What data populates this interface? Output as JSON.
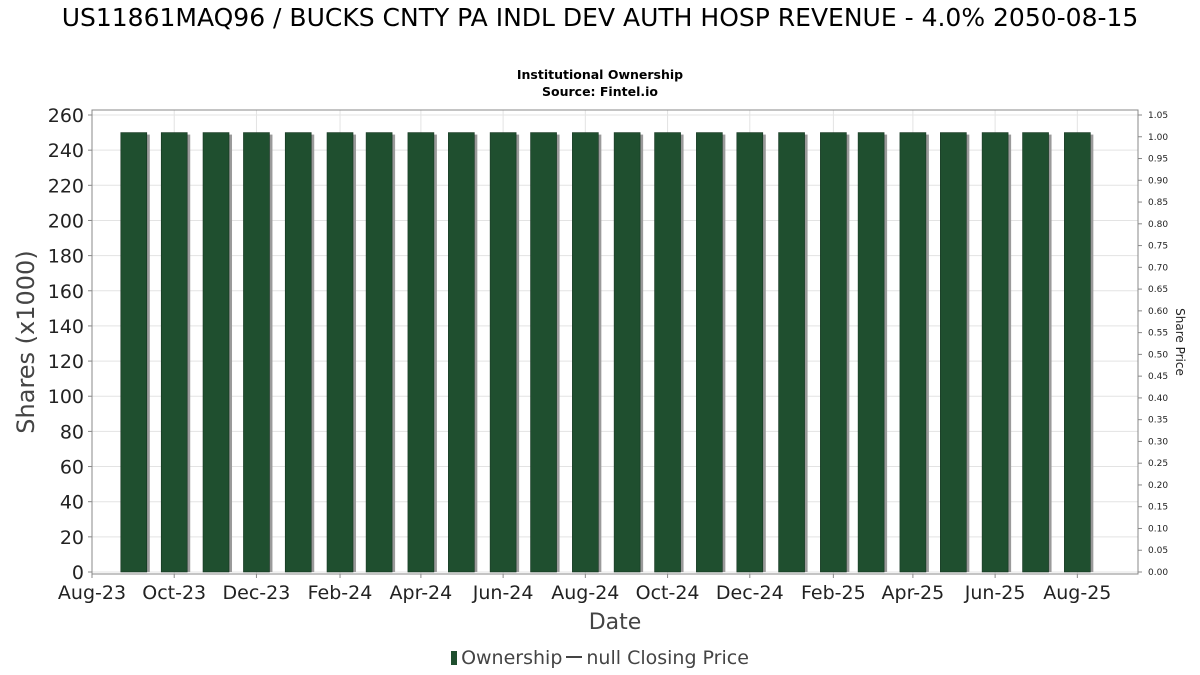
{
  "header": {
    "title": "US11861MAQ96 / BUCKS CNTY PA INDL DEV AUTH HOSP REVENUE - 4.0% 2050-08-15",
    "subtitle1": "Institutional Ownership",
    "subtitle2": "Source: Fintel.io"
  },
  "legend": {
    "ownership": "Ownership",
    "price": "null Closing Price"
  },
  "colors": {
    "bar": "#1f4f2f",
    "bar_shadow": "#9a9a9a",
    "grid": "#e3e3e3"
  },
  "chart_data": {
    "type": "bar",
    "xlabel": "Date",
    "ylabel": "Shares (x1000)",
    "y2label": "Share Price",
    "ylim": [
      0,
      260
    ],
    "yticks": [
      0,
      20,
      40,
      60,
      80,
      100,
      120,
      140,
      160,
      180,
      200,
      220,
      240,
      260
    ],
    "y2lim": [
      0,
      1.05
    ],
    "y2ticks": [
      "0.00",
      "0.05",
      "0.10",
      "0.15",
      "0.20",
      "0.25",
      "0.30",
      "0.35",
      "0.40",
      "0.45",
      "0.50",
      "0.55",
      "0.60",
      "0.65",
      "0.70",
      "0.75",
      "0.80",
      "0.85",
      "0.90",
      "0.95",
      "1.00",
      "1.05"
    ],
    "xticks": [
      "Aug-23",
      "Oct-23",
      "Dec-23",
      "Feb-24",
      "Apr-24",
      "Jun-24",
      "Aug-24",
      "Oct-24",
      "Dec-24",
      "Feb-25",
      "Apr-25",
      "Jun-25",
      "Aug-25"
    ],
    "xlim": [
      "2023-08-01",
      "2025-09-15"
    ],
    "grid": true,
    "legend_position": "bottom",
    "series": [
      {
        "name": "Ownership",
        "x": [
          "2023-09-01",
          "2023-10-01",
          "2023-11-01",
          "2023-12-01",
          "2024-01-01",
          "2024-02-01",
          "2024-03-01",
          "2024-04-01",
          "2024-05-01",
          "2024-06-01",
          "2024-07-01",
          "2024-08-01",
          "2024-09-01",
          "2024-10-01",
          "2024-11-01",
          "2024-12-01",
          "2025-01-01",
          "2025-02-01",
          "2025-03-01",
          "2025-04-01",
          "2025-05-01",
          "2025-06-01",
          "2025-07-01",
          "2025-08-01"
        ],
        "values": [
          250,
          250,
          250,
          250,
          250,
          250,
          250,
          250,
          250,
          250,
          250,
          250,
          250,
          250,
          250,
          250,
          250,
          250,
          250,
          250,
          250,
          250,
          250,
          250
        ]
      }
    ]
  }
}
